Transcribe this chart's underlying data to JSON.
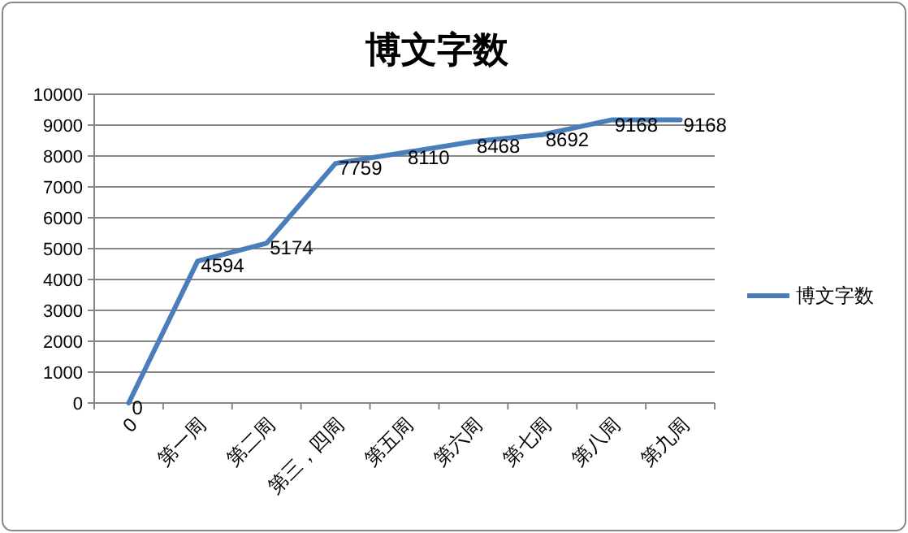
{
  "chart_data": {
    "type": "line",
    "title": "博文字数",
    "categories": [
      "0",
      "第一周",
      "第二周",
      "第三，四周",
      "第五周",
      "第六周",
      "第七周",
      "第八周",
      "第九周"
    ],
    "series": [
      {
        "name": "博文字数",
        "color": "#4a7ebb",
        "values": [
          0,
          4594,
          5174,
          7759,
          8110,
          8468,
          8692,
          9168,
          9168
        ]
      }
    ],
    "ylim": [
      0,
      10000
    ],
    "yticks": [
      0,
      1000,
      2000,
      3000,
      4000,
      5000,
      6000,
      7000,
      8000,
      9000,
      10000
    ],
    "grid": "y",
    "legend": "right",
    "data_labels": true,
    "marker": "none",
    "line_style": "solid"
  }
}
